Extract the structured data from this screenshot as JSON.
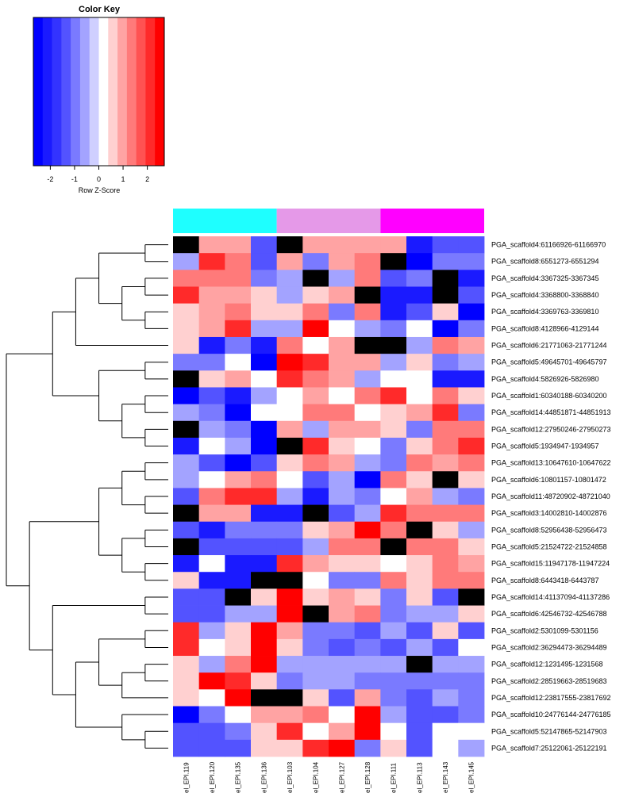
{
  "chart_data": {
    "type": "heatmap",
    "color_key": {
      "title": "Color Key",
      "xlabel": "Row Z-Score",
      "ticks": [
        "-2",
        "-1",
        "0",
        "1",
        "2"
      ],
      "tick_values": [
        -2,
        -1,
        0,
        1,
        2
      ],
      "range": [
        -2.7,
        2.7
      ],
      "colors": [
        "#0000ff",
        "#1a1aff",
        "#3333ff",
        "#5353ff",
        "#7a7aff",
        "#a3a3ff",
        "#cfcfff",
        "#ffffff",
        "#ffd0d0",
        "#ffa3a3",
        "#ff7a7a",
        "#ff5252",
        "#ff2a2a",
        "#ff0000"
      ]
    },
    "columns": [
      "el_EPI.119",
      "el_EPI.120",
      "el_EPI.135",
      "el_EPI.136",
      "el_EPI.103",
      "el_EPI.104",
      "el_EPI.127",
      "el_EPI.128",
      "el_EPI.111",
      "el_EPI.113",
      "el_EPI.143",
      "el_EPI.145"
    ],
    "column_groups": [
      {
        "color": "#1effff",
        "columns": [
          0,
          1,
          2,
          3
        ]
      },
      {
        "color": "#e599e8",
        "columns": [
          4,
          5,
          6,
          7
        ]
      },
      {
        "color": "#ff00ff",
        "columns": [
          8,
          9,
          10,
          11
        ]
      }
    ],
    "rows": [
      "PGA_scaffold4:61166926-61166970",
      "PGA_scaffold8:6551273-6551294",
      "PGA_scaffold4:3367325-3367345",
      "PGA_scaffold4:3368800-3368840",
      "PGA_scaffold4:3369763-3369810",
      "PGA_scaffold8:4128966-4129144",
      "PGA_scaffold6:21771063-21771244",
      "PGA_scaffold5:49645701-49645797",
      "PGA_scaffold4:5826926-5826980",
      "PGA_scaffold1:60340188-60340200",
      "PGA_scaffold14:44851871-44851913",
      "PGA_scaffold12:27950246-27950273",
      "PGA_scaffold5:1934947-1934957",
      "PGA_scaffold13:10647610-10647622",
      "PGA_scaffold6:10801157-10801472",
      "PGA_scaffold11:48720902-48721040",
      "PGA_scaffold3:14002810-14002876",
      "PGA_scaffold8:52956438-52956473",
      "PGA_scaffold5:21524722-21524858",
      "PGA_scaffold15:11947178-11947224",
      "PGA_scaffold8:6443418-6443787",
      "PGA_scaffold14:41137094-41137286",
      "PGA_scaffold6:42546732-42546788",
      "PGA_scaffold2:5301099-5301156",
      "PGA_scaffold2:36294473-36294489",
      "PGA_scaffold12:1231495-1231568",
      "PGA_scaffold2:28519663-28519683",
      "PGA_scaffold12:23817555-23817692",
      "PGA_scaffold10:24776144-24776185",
      "PGA_scaffold5:52147865-52147903",
      "PGA_scaffold7:25122061-25122191"
    ],
    "missing_color": "#000000",
    "values": [
      [
        null,
        1,
        1,
        -1.5,
        null,
        1,
        1,
        1,
        1,
        -2,
        -1.5,
        -1.5
      ],
      [
        -0.5,
        2,
        1.5,
        -1.5,
        1,
        -1,
        1,
        1.5,
        null,
        -2.5,
        -1,
        -1
      ],
      [
        1.5,
        1.5,
        1.5,
        -1,
        -0.5,
        null,
        -0.5,
        1.5,
        -1.5,
        -1,
        null,
        -2
      ],
      [
        2,
        1,
        1,
        0.5,
        -0.5,
        0.5,
        1,
        null,
        -2,
        -2,
        null,
        -1.5
      ],
      [
        0.5,
        1,
        1.5,
        0.5,
        0.5,
        1.5,
        -1,
        1.5,
        -2,
        -1.5,
        0.5,
        -2.5
      ],
      [
        0.5,
        1,
        2,
        -0.5,
        -0.5,
        2.5,
        0,
        -0.5,
        -1,
        0,
        -2.5,
        -1
      ],
      [
        0.5,
        -2,
        -1,
        -2,
        1.5,
        0,
        1,
        null,
        null,
        -0.5,
        1.5,
        1
      ],
      [
        -1,
        -1,
        0,
        -2.5,
        2.5,
        2,
        1,
        1,
        -0.5,
        0.5,
        -1,
        -0.5
      ],
      [
        null,
        0.5,
        1,
        0,
        2,
        1.5,
        1,
        -0.5,
        0,
        0,
        -2,
        -2
      ],
      [
        -2.5,
        -1.5,
        -2,
        -0.5,
        0,
        1,
        0,
        1.5,
        2,
        0,
        1.5,
        0.5
      ],
      [
        -0.5,
        -1,
        -2.5,
        0,
        0,
        1.5,
        1.5,
        0,
        0.5,
        1,
        2,
        -1
      ],
      [
        null,
        -0.5,
        -1,
        -2.5,
        1,
        -0.5,
        1,
        1,
        0.5,
        -1,
        1.5,
        1.5
      ],
      [
        -2,
        0,
        -0.5,
        -2.5,
        null,
        2,
        0.5,
        0,
        -1,
        0.5,
        1.5,
        2
      ],
      [
        -0.5,
        -1.5,
        -2.5,
        -1.5,
        0.5,
        1.5,
        1,
        -0.5,
        -1,
        1.5,
        1,
        1.5
      ],
      [
        -0.5,
        0,
        1,
        1.5,
        0,
        -1.5,
        -0.5,
        -2.7,
        1.5,
        0.5,
        null,
        0.5
      ],
      [
        -1.5,
        1.5,
        2,
        2,
        -0.5,
        -2,
        -0.5,
        -1,
        0,
        1,
        -0.5,
        -1
      ],
      [
        null,
        1,
        1,
        -2,
        -2,
        null,
        -1.5,
        -0.5,
        2,
        1.5,
        1.5,
        1.5
      ],
      [
        -1.5,
        -2,
        -1,
        -1,
        -1,
        0.5,
        1,
        2.7,
        1.5,
        null,
        0.5,
        -0.5
      ],
      [
        null,
        -1.5,
        -1.5,
        -1.5,
        -1.5,
        -0.5,
        1.5,
        1.5,
        null,
        1.5,
        1.5,
        0.5
      ],
      [
        -2,
        0,
        -2,
        -2,
        2,
        1,
        0.5,
        0.5,
        0,
        0.5,
        1.5,
        1
      ],
      [
        0.5,
        -2,
        -2,
        null,
        null,
        0,
        -1,
        -1,
        1.5,
        0.5,
        1.5,
        1.5
      ],
      [
        -1.5,
        -1.5,
        null,
        0.5,
        2.5,
        0.5,
        1,
        0.5,
        -1,
        0.5,
        -1.5,
        null
      ],
      [
        -1.5,
        -1.5,
        -0.5,
        -0.5,
        2.7,
        null,
        1,
        1.5,
        -1,
        -0.5,
        -0.5,
        0.5
      ],
      [
        2,
        -0.5,
        0.5,
        2.7,
        1,
        -1,
        -1,
        -1.5,
        -0.5,
        -1.5,
        0.5,
        -1.5
      ],
      [
        2,
        0,
        0.5,
        2.7,
        0.5,
        -1,
        -1.5,
        -1,
        -1.5,
        -0.5,
        -1.5,
        0
      ],
      [
        0.5,
        -0.5,
        1.5,
        2.7,
        -0.5,
        -0.5,
        -0.5,
        -0.5,
        -0.5,
        null,
        -0.5,
        -0.5
      ],
      [
        0.5,
        2.7,
        2,
        0.5,
        -1,
        -0.5,
        -0.5,
        -1,
        -1,
        -1,
        -1,
        -1
      ],
      [
        0.5,
        0,
        2.7,
        null,
        null,
        0.5,
        -1.5,
        1,
        -1,
        -1.5,
        -0.5,
        -1
      ],
      [
        -2.5,
        -1,
        0,
        1,
        1,
        1.5,
        0,
        2.5,
        -0.5,
        -1.5,
        -1.5,
        -1
      ],
      [
        -1.5,
        -1.5,
        -1,
        0.5,
        2,
        0,
        1,
        2.7,
        0,
        -1.5,
        0,
        0
      ],
      [
        -1.5,
        -1.5,
        -1.5,
        0.5,
        0.5,
        2,
        2.7,
        -1,
        0.5,
        -1.5,
        0,
        -0.5
      ]
    ],
    "row_dendrogram": {
      "children": [
        {
          "children": [
            {
              "children": [
                {
                  "children": [
                    {
                      "children": [
                        {
                          "leaf": 0
                        },
                        {
                          "leaf": 1
                        }
                      ]
                    },
                    {
                      "children": [
                        {
                          "children": [
                            {
                              "leaf": 2
                            },
                            {
                              "leaf": 3
                            }
                          ]
                        },
                        {
                          "children": [
                            {
                              "leaf": 4
                            },
                            {
                              "leaf": 5
                            }
                          ]
                        }
                      ]
                    }
                  ]
                },
                {
                  "leaf": 6
                }
              ]
            },
            {
              "children": [
                {
                  "children": [
                    {
                      "leaf": 7
                    },
                    {
                      "leaf": 8
                    }
                  ]
                },
                {
                  "children": [
                    {
                      "children": [
                        {
                          "leaf": 9
                        },
                        {
                          "leaf": 10
                        }
                      ]
                    },
                    {
                      "children": [
                        {
                          "leaf": 11
                        },
                        {
                          "leaf": 12
                        }
                      ]
                    }
                  ]
                }
              ]
            }
          ]
        },
        {
          "children": [
            {
              "children": [
                {
                  "children": [
                    {
                      "children": [
                        {
                          "leaf": 13
                        },
                        {
                          "leaf": 14
                        }
                      ]
                    },
                    {
                      "children": [
                        {
                          "leaf": 15
                        },
                        {
                          "leaf": 16
                        }
                      ]
                    }
                  ]
                },
                {
                  "children": [
                    {
                      "children": [
                        {
                          "leaf": 17
                        },
                        {
                          "leaf": 18
                        }
                      ]
                    },
                    {
                      "children": [
                        {
                          "leaf": 19
                        },
                        {
                          "leaf": 20
                        }
                      ]
                    }
                  ]
                }
              ]
            },
            {
              "children": [
                {
                  "children": [
                    {
                      "leaf": 21
                    },
                    {
                      "leaf": 22
                    }
                  ]
                },
                {
                  "children": [
                    {
                      "children": [
                        {
                          "children": [
                            {
                              "leaf": 23
                            },
                            {
                              "leaf": 24
                            }
                          ]
                        },
                        {
                          "children": [
                            {
                              "children": [
                                {
                                  "leaf": 25
                                },
                                {
                                  "leaf": 26
                                }
                              ]
                            },
                            {
                              "leaf": 27
                            }
                          ]
                        }
                      ]
                    },
                    {
                      "children": [
                        {
                          "leaf": 28
                        },
                        {
                          "children": [
                            {
                              "leaf": 29
                            },
                            {
                              "leaf": 30
                            }
                          ]
                        }
                      ]
                    }
                  ]
                }
              ]
            }
          ]
        }
      ]
    }
  }
}
